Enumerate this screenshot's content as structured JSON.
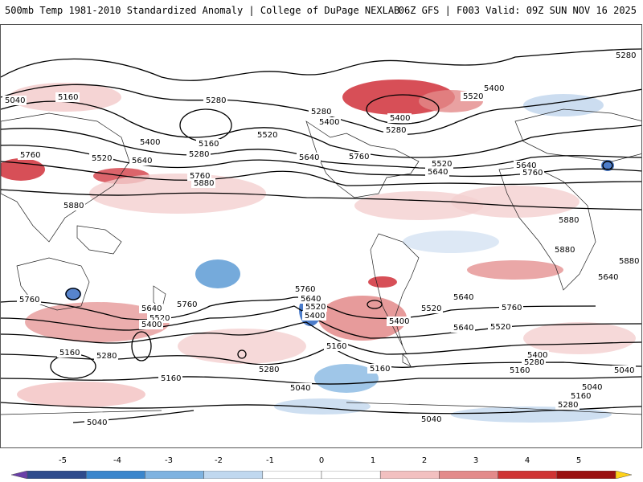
{
  "header": {
    "title_left": "500mb Temp 1981-2010 Standardized Anomaly | College of DuPage NEXLAB",
    "title_right": "06Z GFS | F003 Valid: 09Z SUN NOV 16 2025"
  },
  "map": {
    "field": "500mb temperature standardized anomaly",
    "contour_field": "500mb geopotential height (m)",
    "contour_labels": [
      "5280",
      "5040",
      "5160",
      "5280",
      "5400",
      "5160",
      "5280",
      "5520",
      "5400",
      "5640",
      "5760",
      "5880",
      "5520",
      "5640",
      "5400",
      "5280",
      "5280",
      "5400",
      "5520",
      "5520",
      "5640",
      "5760",
      "5640",
      "5760",
      "5880",
      "5880",
      "5880",
      "5880",
      "5760",
      "5760",
      "5640",
      "5760",
      "5640",
      "5520",
      "5400",
      "5520",
      "5400",
      "5160",
      "5280",
      "5640",
      "5520",
      "5400",
      "5280",
      "5160",
      "5040",
      "5160",
      "5280",
      "5040",
      "5160",
      "5040",
      "5040",
      "5160",
      "5760",
      "5640",
      "5520",
      "5400",
      "5040",
      "5160",
      "5280",
      "5640",
      "5760"
    ],
    "colors": {
      "neg_strong": "#3a6fc4",
      "neg_light": "#c6d9ee",
      "pos_light": "#f4cfcf",
      "pos_strong": "#d0303a",
      "contour": "#000000",
      "coast": "#222222"
    }
  },
  "colorbar": {
    "ticks": [
      "-5",
      "-4",
      "-3",
      "-2",
      "-1",
      "0",
      "1",
      "2",
      "3",
      "4",
      "5"
    ],
    "colors": [
      "#6a3fa8",
      "#2f4b8c",
      "#3b86cc",
      "#7fb3e0",
      "#c0d8ef",
      "#ffffff",
      "#ffffff",
      "#f2c0c0",
      "#e38a8a",
      "#cf3434",
      "#9a1010",
      "#ffd21a"
    ]
  }
}
